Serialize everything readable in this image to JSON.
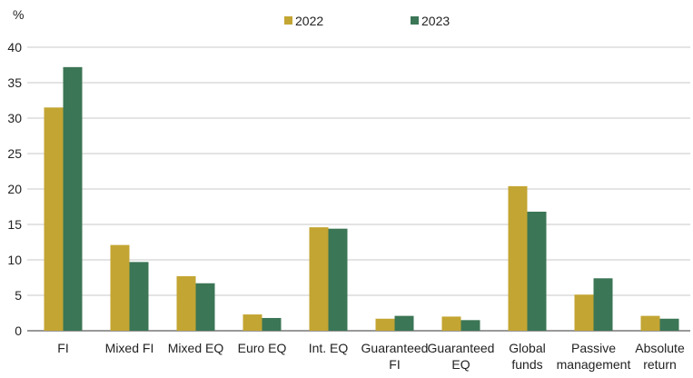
{
  "chart_data": {
    "type": "bar",
    "y_label": "%",
    "categories": [
      "FI",
      "Mixed FI",
      "Mixed EQ",
      "Euro EQ",
      "Int. EQ",
      "Guaranteed\nFI",
      "Guaranteed\nEQ",
      "Global\nfunds",
      "Passive\nmanagement",
      "Absolute\nreturn"
    ],
    "series": [
      {
        "name": "2022",
        "color": "#c3a533",
        "values": [
          31.5,
          12.1,
          7.7,
          2.3,
          14.6,
          1.7,
          2.0,
          20.4,
          5.1,
          2.1
        ]
      },
      {
        "name": "2023",
        "color": "#3b7656",
        "values": [
          37.2,
          9.7,
          6.7,
          1.8,
          14.4,
          2.1,
          1.5,
          16.8,
          7.4,
          1.7
        ]
      }
    ],
    "ylim": [
      0,
      40
    ],
    "yticks": [
      0,
      5,
      10,
      15,
      20,
      25,
      30,
      35,
      40
    ],
    "grid": true
  }
}
